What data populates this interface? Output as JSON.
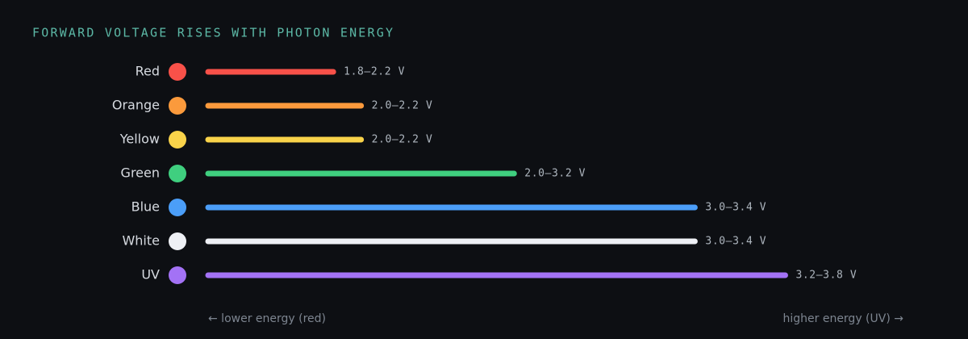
{
  "chart_data": {
    "type": "bar",
    "orientation": "horizontal",
    "title": "FORWARD VOLTAGE RISES WITH PHOTON ENERGY",
    "categories": [
      "Red",
      "Orange",
      "Yellow",
      "Green",
      "Blue",
      "White",
      "UV"
    ],
    "values": [
      18,
      22,
      22,
      44,
      70,
      70,
      83
    ],
    "value_labels": [
      "1.8–2.2 V",
      "2.0–2.2 V",
      "2.0–2.2 V",
      "2.0–3.2 V",
      "3.0–3.4 V",
      "3.0–3.4 V",
      "3.2–3.8 V"
    ],
    "colors": [
      "#f85149",
      "#fb9a3c",
      "#f9d34a",
      "#3fcf7f",
      "#4b9ef8",
      "#eef0f5",
      "#a372f5"
    ],
    "xlim": [
      0,
      100
    ],
    "annotations": {
      "left": "← lower energy (red)",
      "right": "higher energy (UV) →"
    }
  }
}
